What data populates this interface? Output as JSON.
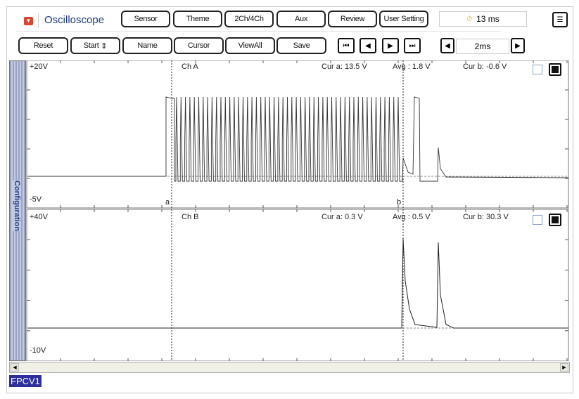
{
  "header": {
    "title": "Oscilloscope",
    "menu_icon": "dropdown-icon",
    "tabs": [
      "Sensor",
      "Theme",
      "2Ch/4Ch",
      "Aux",
      "Review",
      "User Setting"
    ],
    "time_readout": "13 ms",
    "time_icon": "timer-icon"
  },
  "toolbar": {
    "reset": "Reset",
    "start": "Start",
    "name": "Name",
    "cursor": "Cursor",
    "viewall": "ViewAll",
    "save": "Save",
    "timebase": "2ms"
  },
  "sidebar": {
    "label": "Configuration"
  },
  "channel_a": {
    "name": "Ch A",
    "top": "+20V",
    "bottom": "-5V",
    "cur_a": "Cur a: 13.5 V",
    "avg": "Avg  : 1.8 V",
    "cur_b": "Cur b: -0.6 V",
    "cursor_a": "a",
    "cursor_b": "b"
  },
  "channel_b": {
    "name": "Ch B",
    "top": "+40V",
    "bottom": "-10V",
    "cur_a": "Cur a: 0.3 V",
    "avg": "Avg  : 0.5 V",
    "cur_b": "Cur b: 30.3 V"
  },
  "footer": {
    "signal": "FPCV1"
  }
}
